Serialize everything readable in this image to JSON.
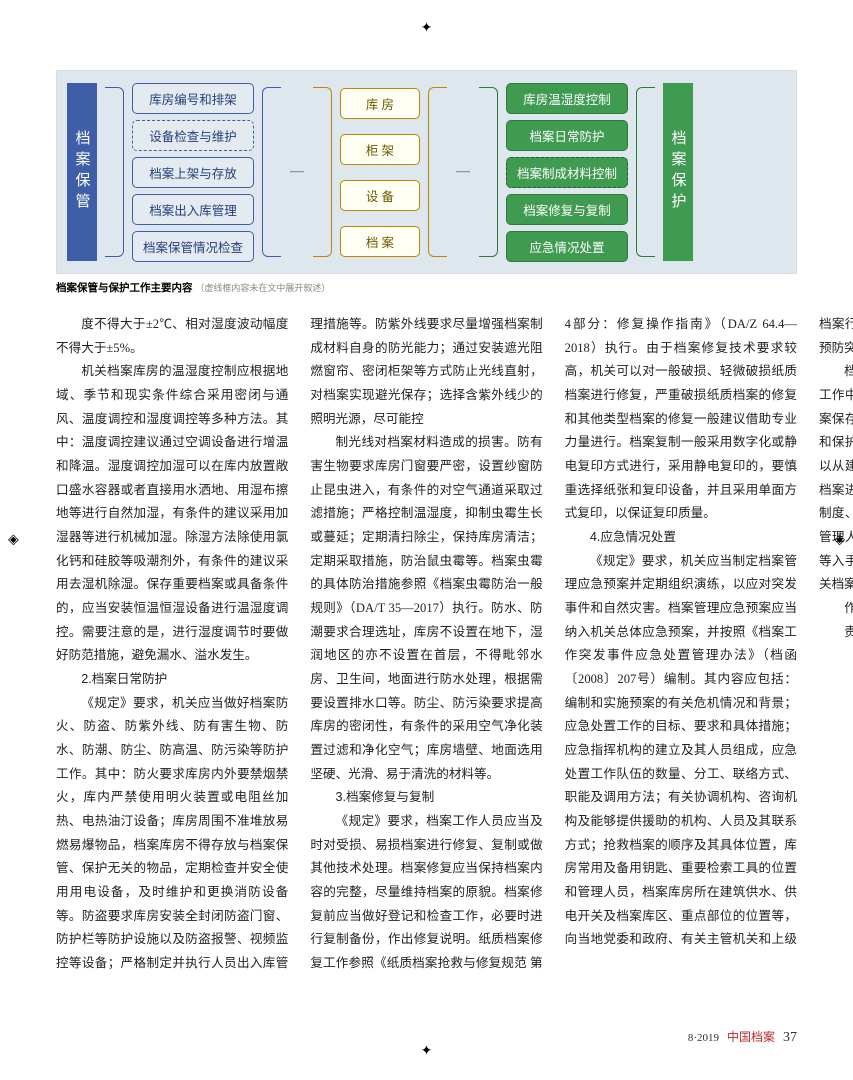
{
  "diagram": {
    "left_label": "档案保管",
    "right_label": "档案保护",
    "blue_boxes": [
      "库房编号和排架",
      "设备检查与维护",
      "档案上架与存放",
      "档案出入库管理",
      "档案保管情况检查"
    ],
    "blue_dashed_index": 1,
    "yellow_boxes": [
      "库 房",
      "柜 架",
      "设 备",
      "档 案"
    ],
    "green_boxes": [
      "库房温湿度控制",
      "档案日常防护",
      "档案制成材料控制",
      "档案修复与复制",
      "应急情况处置"
    ],
    "green_dashed_index": 2,
    "colors": {
      "blue": "#3f5ea8",
      "green": "#3e9b4f",
      "yellow": "#b88a00",
      "bg": "#dfe7ee"
    }
  },
  "caption_bold": "档案保管与保护工作主要内容",
  "caption_note": "（虚线框内容未在文中展开叙述）",
  "paragraphs_pre": [
    "度不得大于±2℃、相对湿度波动幅度不得大于±5%。",
    "机关档案库房的温湿度控制应根据地域、季节和现实条件综合采用密闭与通风、温度调控和湿度调控等多种方法。其中：温度调控建议通过空调设备进行增温和降温。湿度调控加湿可以在库内放置敞口盛水容器或者直接用水洒地、用湿布擦地等进行自然加湿，有条件的建议采用加湿器等进行机械加湿。除湿方法除使用氯化钙和硅胶等吸潮剂外，有条件的建议采用去湿机除湿。保存重要档案或具备条件的，应当安装恒温恒湿设备进行温湿度调控。需要注意的是，进行湿度调节时要做好防范措施，避免漏水、溢水发生。"
  ],
  "sec2": "2.档案日常防护",
  "paragraphs_sec2": [
    "《规定》要求，机关应当做好档案防火、防盗、防紫外线、防有害生物、防水、防潮、防尘、防高温、防污染等防护工作。其中：防火要求库房内外要禁烟禁火，库内严禁使用明火装置或电阻丝加热、电热油汀设备；库房周围不准堆放易燃易爆物品，档案库房不得存放与档案保管、保护无关的物品，定期检查并安全使用用电设备，及时维护和更换消防设备等。防盗要求库房安装全封闭防盗门窗、防护栏等防护设施以及防盗报警、视频监控等设备；严格制定并执行人员出入库管理措施等。防紫外线要求尽量增强档案制成材料自身的防光能力；通过安装遮光阻燃窗帘、密闭柜架等方式防止光线直射，对档案实现避光保存；选择含紫外线少的照明光源，尽可能控",
    "制光线对档案材料造成的损害。防有害生物要求库房门窗要严密，设置纱窗防止昆虫进入，有条件的对空气通道采取过滤措施；严格控制温湿度，抑制虫霉生长或蔓延；定期清扫除尘，保持库房清洁；定期采取措施，防治鼠虫霉等。档案虫霉的具体防治措施参照《档案虫霉防治一般规则》（DA/T 35—2017）执行。防水、防潮要求合理选址，库房不设置在地下，湿润地区的亦不设置在首层，不得毗邻水房、卫生间，地面进行防水处理，根据需要设置排水口等。防尘、防污染要求提高库房的密闭性，有条件的采用空气净化装置过滤和净化空气；库房墙壁、地面选用坚硬、光滑、易于清洗的材料等。"
  ],
  "sec3": "3.档案修复与复制",
  "paragraphs_sec3": [
    "《规定》要求，档案工作人员应当及时对受损、易损档案进行修复、复制或做其他技术处理。档案修复应当保持档案内容的完整，尽量维持档案的原貌。档案修复前应当做好登记和检查工作，必要时进行复制备份，作出修复说明。纸质档案修复工作参照《纸质档案抢救与修复规范 第4部分：修复操作指南》（DA/Z 64.4—2018）执行。由于档案修复技术要求较高，机关可以对一般破损、轻微破损纸质档案进行修复，严重破损纸质档案的修复和其他类型档案的修复一般建议借助专业力量进行。档案复制一般采用数字化或静电复印方式进行，采用静电复印的，要慎重选择纸张和复印设备，并且采用单面方式复印，以保证复印质量。"
  ],
  "sec4": "4.应急情况处置",
  "paragraphs_sec4": [
    "《规定》要求，机关应当制定档案管理应急预案并定期组织演练，以应对突发事件和自然灾害。档案管理应急预案应当纳入机关总体应急预案，并按照《档案工作突发事件应急处置管理办法》（档函〔2008〕207号）编制。其内容应包括：编制和实施预案的有关危机情况和背景；应急处置工作的目标、要求和具体措施；应急指挥机构的建立及其人员组成，应急处置工作队伍的数量、分工、联络方式、职能及调用方法；有关协调机构、咨询机构及能够提供援助的机构、人员及其联系方式；抢救档案的顺序及其具体位置，库房常用及备用钥匙、重要检索工具的位置和管理人员，档案库房所在建筑供水、供电开关及档案库区、重点部位的位置等，向当地党委和政府、有关主管机关和上级档案行政管理部门报告的联系方式，其他预防突发事件、救灾应注意事项。",
    "档案保管和保护工作是当前机关档案工作中一个相对薄弱的环节。随着机关档案保存环境和条件的逐步改善，档案保管和保护工作的基础条件逐渐完备，机关可以从建立并执行档案库房安全保密制度、档案进出库登记制度、档案库房清洁卫生制度、档案库房设备管理制度、档案库房管理人员岗位责任制、档案库房检查制度等入手，明确档案保管和保护要求，把机关档案保管和保护工作逐步规范起来。"
  ],
  "byline1": "作者单位：国家档案局",
  "byline2": "责任编辑：田小燕",
  "footer": {
    "issue": "8",
    "year": "2019",
    "magazine": "中国档案",
    "page": "37"
  }
}
